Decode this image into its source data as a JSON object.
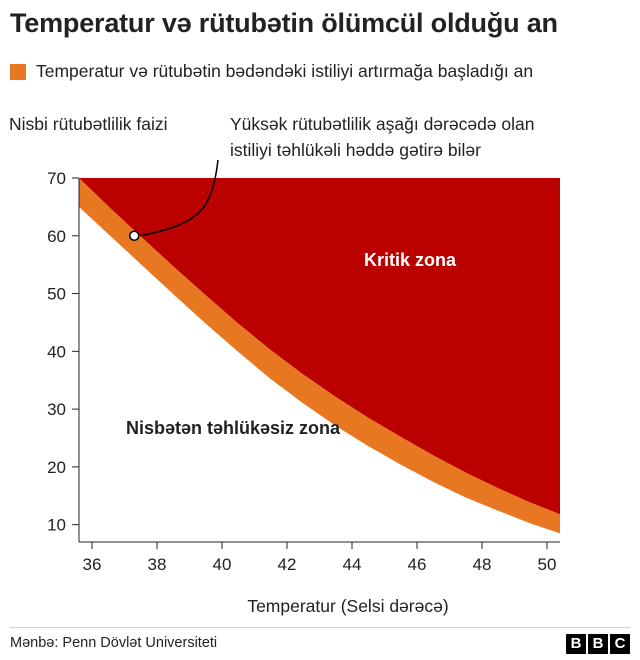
{
  "title": "Temperatur və rütubətin ölümcül olduğu an",
  "legend": {
    "label": "Temperatur və rütubətin bədəndəki istiliyi artırmağa başladığı an",
    "color": "#e87722"
  },
  "source": "Mənbə: Penn Dövlət Universiteti",
  "logo": {
    "letters": [
      "B",
      "B",
      "C"
    ]
  },
  "colors": {
    "critical": "#bb0000",
    "threshold": "#e87722",
    "axis": "#222222",
    "text": "#222222"
  },
  "chart_data": {
    "type": "area",
    "xlabel": "Temperatur (Selsi dərəcə)",
    "ylabel": "Nisbi rütubətlilik faizi",
    "xlim": [
      35.6,
      50.4
    ],
    "ylim": [
      7,
      70
    ],
    "xticks": [
      36,
      38,
      40,
      42,
      44,
      46,
      48,
      50
    ],
    "yticks": [
      10,
      20,
      30,
      40,
      50,
      60,
      70
    ],
    "series": [
      {
        "name": "Temperatur və rütubətin bədəndəki istiliyi artırmağa başladığı an",
        "x": [
          35.6,
          36.5,
          37.5,
          38.5,
          39.5,
          40.5,
          41.5,
          42.5,
          43.5,
          44.5,
          45.5,
          46.5,
          47.5,
          48.5,
          49.5,
          50.4
        ],
        "lower": [
          65.0,
          60.3,
          55.1,
          49.9,
          44.8,
          39.9,
          35.2,
          31.0,
          27.1,
          23.6,
          20.4,
          17.4,
          14.7,
          12.4,
          10.2,
          8.5
        ],
        "upper": [
          70.0,
          65.1,
          59.9,
          54.7,
          49.7,
          44.8,
          40.2,
          36.0,
          32.1,
          28.5,
          25.2,
          22.0,
          19.0,
          16.3,
          13.8,
          11.8
        ]
      }
    ],
    "annotations": {
      "critical_zone": "Kritik zona",
      "safe_zone": "Nisbətən təhlükəsiz zona",
      "callout": [
        "Yüksək rütubətlilik aşağı dərəcədə olan",
        "istiliyi təhlükəli həddə gətirə bilər"
      ],
      "callout_point": {
        "x": 37.3,
        "y": 60
      }
    }
  }
}
